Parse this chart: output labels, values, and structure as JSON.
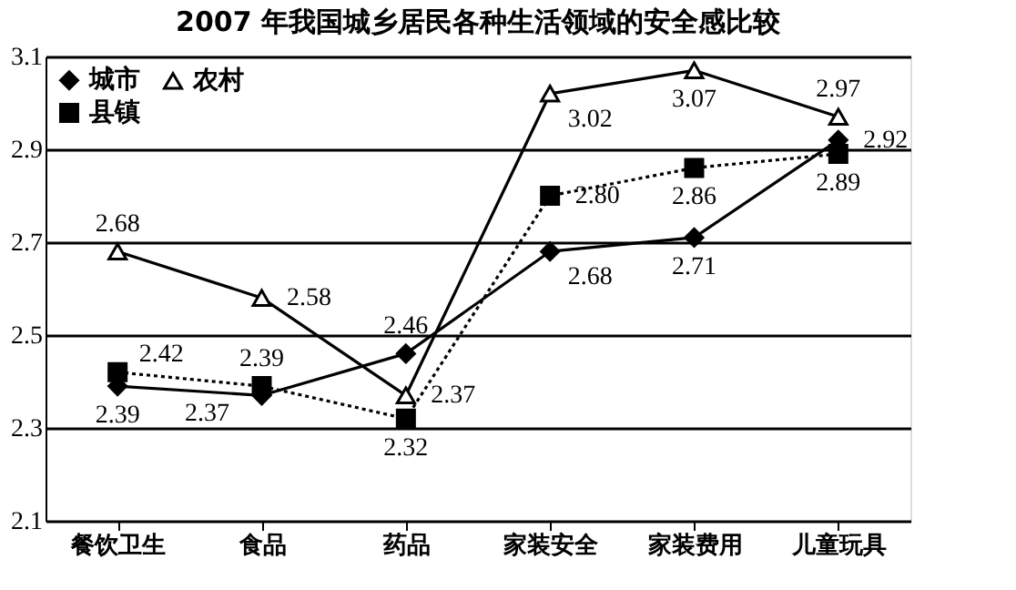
{
  "chart_data": {
    "type": "line",
    "title": "2007 年我国城乡居民各种生活领域的安全感比较",
    "categories": [
      "餐饮卫生",
      "食品",
      "药品",
      "家装安全",
      "家装费用",
      "儿童玩具"
    ],
    "series": [
      {
        "name": "城市",
        "color": "#000000",
        "marker": "diamond",
        "line_style": "solid",
        "values": [
          2.39,
          2.37,
          2.46,
          2.68,
          2.71,
          2.92
        ]
      },
      {
        "name": "县镇",
        "color": "#000000",
        "marker": "square",
        "line_style": "dotted",
        "values": [
          2.42,
          2.39,
          2.32,
          2.8,
          2.86,
          2.89
        ],
        "value_labels": [
          "2.42",
          "2.39",
          "2.32",
          "2.80",
          "2.86",
          "2.89"
        ]
      },
      {
        "name": "农村",
        "color": "#000000",
        "marker": "triangle",
        "line_style": "solid",
        "values": [
          2.68,
          2.58,
          2.37,
          3.02,
          3.07,
          2.97
        ]
      }
    ],
    "ylim": [
      2.1,
      3.1
    ],
    "yticks": [
      2.1,
      2.3,
      2.5,
      2.7,
      2.9,
      3.1
    ],
    "grid": "y",
    "legend": "top left",
    "data_labels": true
  }
}
